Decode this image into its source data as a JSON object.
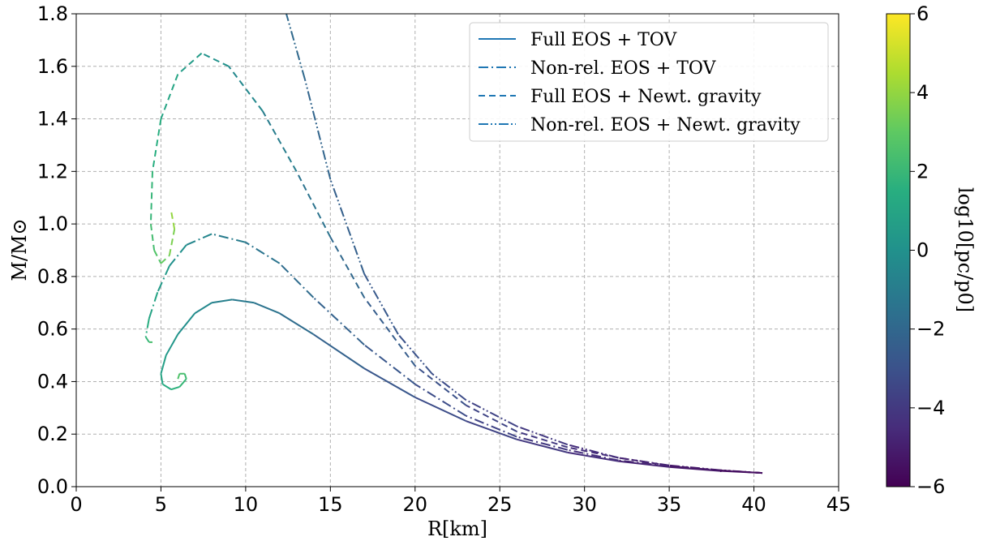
{
  "chart_data": {
    "type": "line",
    "xlabel": "R[km]",
    "ylabel": "M/M⊙",
    "xlim": [
      0,
      45
    ],
    "ylim": [
      0,
      1.8
    ],
    "xticks": [
      0,
      5,
      10,
      15,
      20,
      25,
      30,
      35,
      40,
      45
    ],
    "yticks": [
      0.0,
      0.2,
      0.4,
      0.6,
      0.8,
      1.0,
      1.2,
      1.4,
      1.6,
      1.8
    ],
    "xtick_labels": [
      "0",
      "5",
      "10",
      "15",
      "20",
      "25",
      "30",
      "35",
      "40",
      "45"
    ],
    "ytick_labels": [
      "0.0",
      "0.2",
      "0.4",
      "0.6",
      "0.8",
      "1.0",
      "1.2",
      "1.4",
      "1.6",
      "1.8"
    ],
    "grid": true,
    "legend_position": "top-right",
    "colorbar": {
      "label": "log10[pc/p0]",
      "range": [
        -6,
        6
      ],
      "ticks": [
        -6,
        -4,
        -2,
        0,
        2,
        4,
        6
      ],
      "tick_labels": [
        "−6",
        "−4",
        "−2",
        "0",
        "2",
        "4",
        "6"
      ],
      "colormap": "viridis"
    },
    "series": [
      {
        "name": "Full EOS + TOV",
        "style": "solid",
        "points": [
          [
            40.5,
            0.052,
            -5.7
          ],
          [
            38,
            0.06,
            -5.4
          ],
          [
            35,
            0.075,
            -5.0
          ],
          [
            32,
            0.097,
            -4.6
          ],
          [
            29,
            0.13,
            -4.2
          ],
          [
            26,
            0.18,
            -3.8
          ],
          [
            23,
            0.25,
            -3.4
          ],
          [
            20,
            0.34,
            -3.0
          ],
          [
            17,
            0.45,
            -2.5
          ],
          [
            14,
            0.58,
            -2.0
          ],
          [
            12,
            0.66,
            -1.6
          ],
          [
            10.5,
            0.7,
            -1.3
          ],
          [
            9.2,
            0.712,
            -1.0
          ],
          [
            8,
            0.7,
            -0.6
          ],
          [
            7,
            0.66,
            -0.3
          ],
          [
            6.0,
            0.58,
            0.1
          ],
          [
            5.3,
            0.5,
            0.5
          ],
          [
            5.0,
            0.43,
            0.9
          ],
          [
            5.1,
            0.39,
            1.2
          ],
          [
            5.6,
            0.37,
            1.5
          ],
          [
            6.1,
            0.38,
            1.8
          ],
          [
            6.5,
            0.41,
            2.1
          ],
          [
            6.4,
            0.43,
            2.3
          ],
          [
            6.1,
            0.43,
            2.5
          ],
          [
            6.0,
            0.41,
            2.7
          ]
        ]
      },
      {
        "name": "Non-rel. EOS + TOV",
        "style": "dashdot",
        "points": [
          [
            40.5,
            0.052,
            -5.7
          ],
          [
            38,
            0.062,
            -5.4
          ],
          [
            35,
            0.078,
            -5.0
          ],
          [
            32,
            0.1,
            -4.6
          ],
          [
            29,
            0.14,
            -4.2
          ],
          [
            26,
            0.19,
            -3.8
          ],
          [
            23,
            0.27,
            -3.4
          ],
          [
            20,
            0.39,
            -3.0
          ],
          [
            17,
            0.54,
            -2.5
          ],
          [
            14,
            0.72,
            -2.0
          ],
          [
            12,
            0.85,
            -1.6
          ],
          [
            10,
            0.93,
            -1.2
          ],
          [
            8,
            0.962,
            -0.8
          ],
          [
            6.5,
            0.92,
            -0.3
          ],
          [
            5.5,
            0.84,
            0.2
          ],
          [
            4.8,
            0.74,
            0.7
          ],
          [
            4.3,
            0.64,
            1.2
          ],
          [
            4.1,
            0.57,
            1.7
          ],
          [
            4.3,
            0.55,
            2.2
          ],
          [
            4.5,
            0.55,
            2.6
          ]
        ]
      },
      {
        "name": "Full EOS + Newt. gravity",
        "style": "dashed",
        "points": [
          [
            40.5,
            0.052,
            -5.7
          ],
          [
            38,
            0.062,
            -5.4
          ],
          [
            35,
            0.08,
            -5.0
          ],
          [
            32,
            0.11,
            -4.6
          ],
          [
            29,
            0.15,
            -4.2
          ],
          [
            26,
            0.21,
            -3.8
          ],
          [
            23,
            0.31,
            -3.3
          ],
          [
            20,
            0.46,
            -2.8
          ],
          [
            17,
            0.72,
            -2.2
          ],
          [
            15,
            0.95,
            -1.7
          ],
          [
            13,
            1.2,
            -1.2
          ],
          [
            11,
            1.43,
            -0.7
          ],
          [
            9,
            1.6,
            -0.2
          ],
          [
            7.4,
            1.65,
            0.3
          ],
          [
            6,
            1.57,
            0.8
          ],
          [
            5.0,
            1.4,
            1.3
          ],
          [
            4.5,
            1.2,
            1.7
          ],
          [
            4.4,
            1.0,
            2.1
          ],
          [
            4.6,
            0.9,
            2.5
          ],
          [
            5.0,
            0.85,
            2.9
          ],
          [
            5.5,
            0.88,
            3.3
          ],
          [
            5.8,
            0.98,
            3.8
          ],
          [
            5.6,
            1.05,
            4.2
          ]
        ]
      },
      {
        "name": "Non-rel. EOS + Newt. gravity",
        "style": "dashdotdot",
        "points": [
          [
            40.5,
            0.052,
            -5.7
          ],
          [
            38,
            0.063,
            -5.4
          ],
          [
            35,
            0.081,
            -5.0
          ],
          [
            32,
            0.11,
            -4.6
          ],
          [
            29,
            0.16,
            -4.2
          ],
          [
            26,
            0.23,
            -3.8
          ],
          [
            23,
            0.33,
            -3.4
          ],
          [
            21,
            0.43,
            -3.1
          ],
          [
            19,
            0.58,
            -2.8
          ],
          [
            17,
            0.81,
            -2.5
          ],
          [
            15,
            1.17,
            -2.2
          ],
          [
            13.5,
            1.55,
            -2.0
          ],
          [
            12.4,
            1.8,
            -1.8
          ]
        ]
      }
    ]
  }
}
